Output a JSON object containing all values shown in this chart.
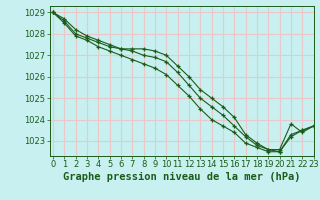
{
  "title": "Graphe pression niveau de la mer (hPa)",
  "background_color": "#c8f0f0",
  "grid_color": "#e8c8c8",
  "line_color": "#1a5c1a",
  "xlim": [
    -0.3,
    23
  ],
  "ylim": [
    1022.3,
    1029.3
  ],
  "yticks": [
    1023,
    1024,
    1025,
    1026,
    1027,
    1028,
    1029
  ],
  "xticks": [
    0,
    1,
    2,
    3,
    4,
    5,
    6,
    7,
    8,
    9,
    10,
    11,
    12,
    13,
    14,
    15,
    16,
    17,
    18,
    19,
    20,
    21,
    22,
    23
  ],
  "series": [
    [
      1029.0,
      1028.7,
      1028.2,
      1027.9,
      1027.7,
      1027.5,
      1027.3,
      1027.3,
      1027.3,
      1027.2,
      1027.0,
      1026.5,
      1026.0,
      1025.4,
      1025.0,
      1024.6,
      1024.1,
      1023.3,
      1022.9,
      1022.6,
      1022.6,
      1023.8,
      1023.4,
      1023.7
    ],
    [
      1029.0,
      1028.6,
      1028.0,
      1027.8,
      1027.6,
      1027.4,
      1027.3,
      1027.2,
      1027.0,
      1026.9,
      1026.7,
      1026.2,
      1025.6,
      1025.0,
      1024.6,
      1024.2,
      1023.7,
      1023.2,
      1022.8,
      1022.6,
      1022.5,
      1023.3,
      1023.5,
      1023.7
    ],
    [
      1029.0,
      1028.5,
      1027.9,
      1027.7,
      1027.4,
      1027.2,
      1027.0,
      1026.8,
      1026.6,
      1026.4,
      1026.1,
      1025.6,
      1025.1,
      1024.5,
      1024.0,
      1023.7,
      1023.4,
      1022.9,
      1022.7,
      1022.5,
      1022.5,
      1023.2,
      1023.5,
      1023.7
    ]
  ],
  "tick_fontsize": 6,
  "title_fontsize": 7.5,
  "marker_size": 3.5,
  "line_width": 0.8
}
